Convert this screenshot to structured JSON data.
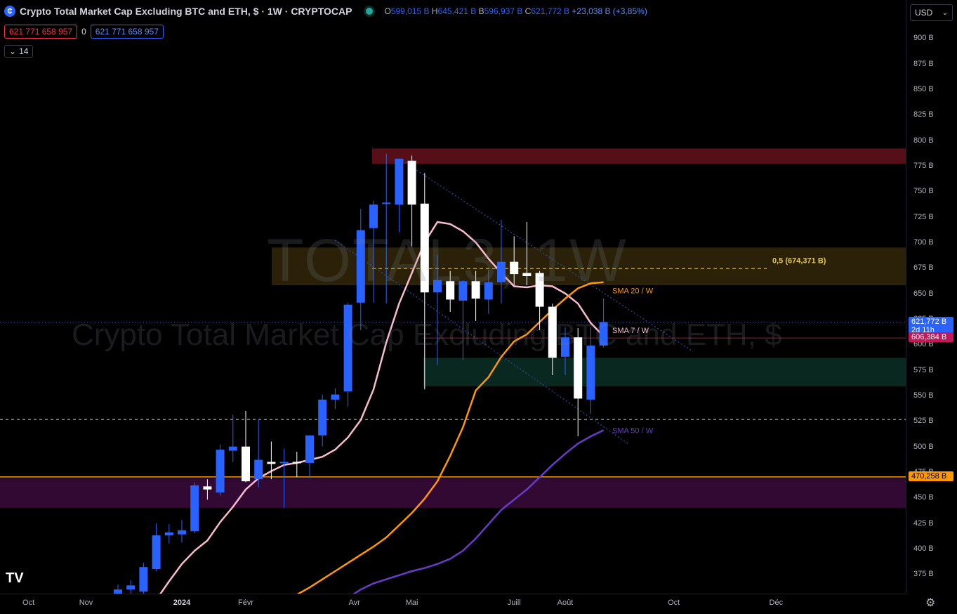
{
  "header": {
    "logo_text": "₵",
    "title": "Crypto Total Market Cap Excluding BTC and ETH, $ · 1W · CRYPTOCAP",
    "ohlc": {
      "o_label": "O",
      "o_value": "599,015 B",
      "h_label": "H",
      "h_value": "645,421 B",
      "l_label": "B",
      "l_value": "596,937 B",
      "c_label": "C",
      "c_value": "621,772 B",
      "change": "+23,038 B (+3,85%)"
    }
  },
  "position": {
    "sell": "621 771 658 957",
    "spread": "0",
    "buy": "621 771 658 957"
  },
  "indicators_count": "14",
  "currency": "USD",
  "watermark": {
    "symbol": "TOTAL3, 1W",
    "description": "Crypto Total Market Cap Excluding BTC and ETH, $"
  },
  "price_tags": {
    "current": "621,772 B",
    "countdown": "2d 11h",
    "red": "606,384 B",
    "orange": "470,258 B"
  },
  "settings_icon": "gear-icon",
  "tv_logo": "TV",
  "chart_data": {
    "type": "candlestick",
    "unit": "B USD",
    "yticks": [
      "900 B",
      "875 B",
      "850 B",
      "825 B",
      "800 B",
      "775 B",
      "750 B",
      "725 B",
      "700 B",
      "675 B",
      "650 B",
      "625 B",
      "600 B",
      "575 B",
      "550 B",
      "525 B",
      "500 B",
      "475 B",
      "450 B",
      "425 B",
      "400 B",
      "375 B"
    ],
    "y_tick_values": [
      900,
      875,
      850,
      825,
      800,
      775,
      750,
      725,
      700,
      675,
      650,
      625,
      600,
      575,
      550,
      525,
      500,
      475,
      450,
      425,
      400,
      375
    ],
    "ylim": [
      357.5,
      922
    ],
    "x_labels": [
      {
        "label": "Oct",
        "week": -7,
        "bold": false
      },
      {
        "label": "Nov",
        "week": -2.5,
        "bold": false
      },
      {
        "label": "2024",
        "week": 5,
        "bold": true
      },
      {
        "label": "Févr",
        "week": 10,
        "bold": false
      },
      {
        "label": "Avr",
        "week": 18.5,
        "bold": false
      },
      {
        "label": "Mai",
        "week": 23,
        "bold": false
      },
      {
        "label": "Juill",
        "week": 31,
        "bold": false
      },
      {
        "label": "Août",
        "week": 35,
        "bold": false
      },
      {
        "label": "Oct",
        "week": 43.5,
        "bold": false
      },
      {
        "label": "Déc",
        "week": 51.5,
        "bold": false
      }
    ],
    "candles": [
      {
        "o": 355,
        "h": 365,
        "l": 350,
        "c": 360
      },
      {
        "o": 360,
        "h": 369,
        "l": 355,
        "c": 364
      },
      {
        "o": 358,
        "h": 386,
        "l": 355,
        "c": 382
      },
      {
        "o": 380,
        "h": 425,
        "l": 378,
        "c": 413
      },
      {
        "o": 413,
        "h": 424,
        "l": 405,
        "c": 416
      },
      {
        "o": 414,
        "h": 428,
        "l": 406,
        "c": 418
      },
      {
        "o": 417,
        "h": 465,
        "l": 415,
        "c": 462
      },
      {
        "o": 461,
        "h": 468,
        "l": 448,
        "c": 458
      },
      {
        "o": 455,
        "h": 502,
        "l": 452,
        "c": 497
      },
      {
        "o": 496,
        "h": 531,
        "l": 485,
        "c": 500
      },
      {
        "o": 500,
        "h": 535,
        "l": 465,
        "c": 466
      },
      {
        "o": 468,
        "h": 527,
        "l": 460,
        "c": 487
      },
      {
        "o": 485,
        "h": 505,
        "l": 468,
        "c": 483
      },
      {
        "o": 484,
        "h": 498,
        "l": 440,
        "c": 485
      },
      {
        "o": 485,
        "h": 495,
        "l": 470,
        "c": 484
      },
      {
        "o": 484,
        "h": 511,
        "l": 469,
        "c": 511
      },
      {
        "o": 511,
        "h": 551,
        "l": 500,
        "c": 546
      },
      {
        "o": 546,
        "h": 557,
        "l": 537,
        "c": 551
      },
      {
        "o": 554,
        "h": 641,
        "l": 539,
        "c": 639
      },
      {
        "o": 641,
        "h": 733,
        "l": 614,
        "c": 712
      },
      {
        "o": 714,
        "h": 741,
        "l": 641,
        "c": 737
      },
      {
        "o": 738,
        "h": 787,
        "l": 640,
        "c": 739
      },
      {
        "o": 737,
        "h": 782,
        "l": 710,
        "c": 782
      },
      {
        "o": 780,
        "h": 785,
        "l": 696,
        "c": 737
      },
      {
        "o": 738,
        "h": 768,
        "l": 556,
        "c": 651
      },
      {
        "o": 651,
        "h": 688,
        "l": 580,
        "c": 663
      },
      {
        "o": 662,
        "h": 672,
        "l": 632,
        "c": 644
      },
      {
        "o": 643,
        "h": 663,
        "l": 585,
        "c": 662
      },
      {
        "o": 662,
        "h": 672,
        "l": 623,
        "c": 645
      },
      {
        "o": 644,
        "h": 673,
        "l": 630,
        "c": 661
      },
      {
        "o": 661,
        "h": 722,
        "l": 640,
        "c": 681
      },
      {
        "o": 681,
        "h": 706,
        "l": 658,
        "c": 669
      },
      {
        "o": 670,
        "h": 720,
        "l": 658,
        "c": 667
      },
      {
        "o": 670,
        "h": 672,
        "l": 614,
        "c": 637
      },
      {
        "o": 637,
        "h": 640,
        "l": 570,
        "c": 587
      },
      {
        "o": 588,
        "h": 617,
        "l": 570,
        "c": 607
      },
      {
        "o": 607,
        "h": 616,
        "l": 510,
        "c": 547
      },
      {
        "o": 546,
        "h": 617,
        "l": 532,
        "c": 599
      },
      {
        "o": 599,
        "h": 645,
        "l": 597,
        "c": 622
      }
    ],
    "series": [
      {
        "name": "SMA 7 / W",
        "color": "#f8bbd0",
        "values": [
          340,
          350,
          368,
          385,
          398,
          408,
          426,
          441,
          458,
          469,
          476,
          482,
          484,
          487,
          490,
          497,
          509,
          526,
          556,
          602,
          640,
          670,
          700,
          720,
          718,
          711,
          700,
          684,
          670,
          657,
          656,
          658,
          657,
          650,
          640,
          621,
          608
        ]
      },
      {
        "name": "SMA 20 / W",
        "color": "#ff9800",
        "values": [
          345,
          355,
          362,
          370,
          378,
          386,
          394,
          402,
          411,
          423,
          435,
          449,
          466,
          491,
          519,
          555,
          568,
          588,
          603,
          610,
          622,
          634,
          645,
          655,
          660,
          661
        ]
      },
      {
        "name": "SMA 50 / W",
        "color": "#6a3bc7",
        "values": [
          343,
          352,
          360,
          366,
          370,
          374,
          378,
          381,
          385,
          390,
          398,
          410,
          424,
          438,
          448,
          458,
          470,
          482,
          493,
          503,
          510,
          516
        ]
      }
    ],
    "annotations": {
      "fib_label": "0,5 (674,371 B)",
      "fib_value": 674.371,
      "sma20_label": "SMA 20 / W",
      "sma7_label": "SMA 7 / W",
      "sma50_label": "SMA 50 / W"
    },
    "zones": [
      {
        "name": "resistance-zone",
        "from": 777,
        "to": 792,
        "color": "rgba(115,20,30,0.75)"
      },
      {
        "name": "fib-zone",
        "from": 658,
        "to": 695,
        "color": "rgba(150,120,30,0.28)"
      },
      {
        "name": "support-zone",
        "from": 559,
        "to": 587,
        "color": "rgba(20,90,70,0.45)"
      },
      {
        "name": "low-zone",
        "from": 440,
        "to": 469,
        "color": "rgba(110,20,110,0.45)"
      }
    ],
    "hlines": [
      {
        "value": 470.258,
        "color": "#ff9800",
        "style": "solid"
      },
      {
        "value": 526.5,
        "color": "#d1d4dc",
        "style": "dashed"
      },
      {
        "value": 621.772,
        "color": "#4a5a9a",
        "style": "dotted"
      },
      {
        "value": 606.384,
        "color": "#8a2030",
        "style": "solid"
      }
    ],
    "channel": {
      "upper": [
        {
          "week": 22,
          "v": 782
        },
        {
          "week": 45,
          "v": 593
        }
      ],
      "lower": [
        {
          "week": 17,
          "v": 702
        },
        {
          "week": 40,
          "v": 502
        }
      ]
    },
    "colors": {
      "up": "#2962ff",
      "down": "#ffffff",
      "bg": "#000000"
    }
  }
}
